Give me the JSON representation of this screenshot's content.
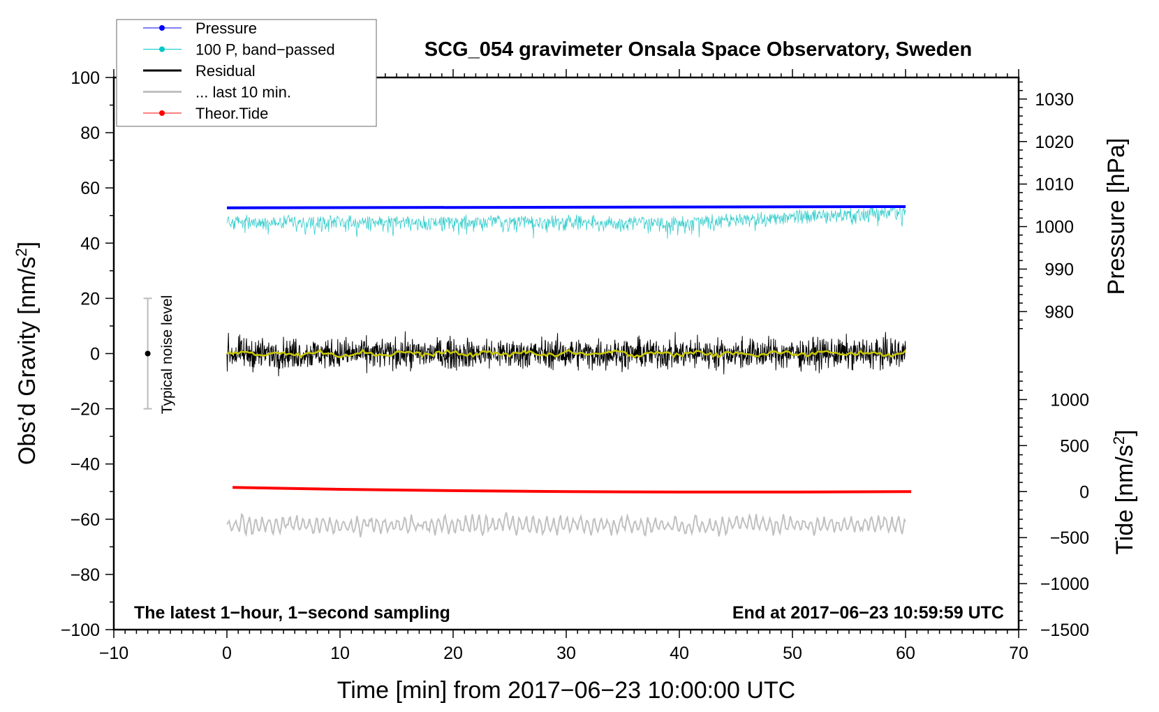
{
  "chart_data": {
    "type": "line",
    "title": "SCG_054 gravimeter Onsala Space Observatory, Sweden",
    "xlabel": "Time [min] from 2017−06−23 10:00:00 UTC",
    "ylabel_left": "Obs’d Gravity [nm/s",
    "ylabel_right_pressure": "Pressure [hPa]",
    "ylabel_right_tide": "Tide [nm/s",
    "sup": "2",
    "xlim": [
      -10,
      70
    ],
    "ylim": [
      -100,
      100
    ],
    "x_ticks": [
      "−10",
      "0",
      "10",
      "20",
      "30",
      "40",
      "50",
      "60",
      "70"
    ],
    "y_ticks": [
      "100",
      "80",
      "60",
      "40",
      "20",
      "0",
      "−20",
      "−40",
      "−60",
      "−80",
      "−100"
    ],
    "pressure_ticks": [
      "1030",
      "1020",
      "1010",
      "1000",
      "990",
      "980"
    ],
    "tide_ticks": [
      "1000",
      "500",
      "0",
      "−500",
      "−1000",
      "−1500"
    ],
    "annotation_left": "The latest 1−hour, 1−second sampling",
    "annotation_right": "End at 2017−06−23 10:59:59 UTC",
    "noise_label": "Typical noise level",
    "noise_bar": {
      "x": -7,
      "low": -20,
      "high": 20,
      "center": 0
    },
    "legend": [
      {
        "label": "Pressure",
        "color": "#0000ff",
        "marker": true
      },
      {
        "label": "100 P, band−passed",
        "color": "#00c8c8",
        "marker": true
      },
      {
        "label": "Residual",
        "color": "#000000",
        "marker": false
      },
      {
        "label": "... last 10 min.",
        "color": "#c0c0c0",
        "marker": false
      },
      {
        "label": "Theor.Tide",
        "color": "#ff0000",
        "marker": true
      }
    ],
    "series": [
      {
        "name": "Pressure",
        "axis": "pressure_hPa",
        "x_range": [
          0,
          60
        ],
        "start": 1004.4,
        "end": 1004.7,
        "color": "#0000ff"
      },
      {
        "name": "100 P, band-passed",
        "axis": "gravity_nm_s2",
        "x_range": [
          0,
          60
        ],
        "mean_start": 49,
        "mean_end": 53,
        "amplitude": 4,
        "color": "#33cccc"
      },
      {
        "name": "Residual",
        "axis": "gravity_nm_s2",
        "x_range": [
          0,
          60
        ],
        "mean": 0,
        "amplitude": 5,
        "color": "#000000"
      },
      {
        "name": "Residual smoothed",
        "axis": "gravity_nm_s2",
        "x_range": [
          0,
          60
        ],
        "mean": 0,
        "amplitude": 1.5,
        "color": "#c8c800"
      },
      {
        "name": "... last 10 min.",
        "axis": "gravity_nm_s2",
        "x_range": [
          0,
          60
        ],
        "mean": -62,
        "amplitude": 5,
        "color": "#c0c0c0"
      },
      {
        "name": "Theor.Tide",
        "axis": "tide_nm_s2",
        "x": [
          0.5,
          10,
          20,
          30,
          40,
          50,
          60.5
        ],
        "y": [
          45,
          25,
          10,
          0,
          -5,
          -5,
          0
        ],
        "color": "#ff0000"
      }
    ]
  }
}
